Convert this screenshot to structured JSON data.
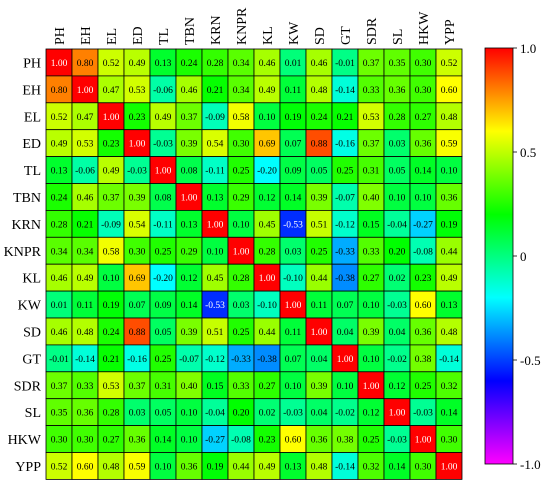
{
  "chart_data": {
    "type": "heatmap",
    "title": "",
    "variables": [
      "PH",
      "EH",
      "EL",
      "ED",
      "TL",
      "TBN",
      "KRN",
      "KNPR",
      "KL",
      "KW",
      "SD",
      "GT",
      "SDR",
      "SL",
      "HKW",
      "YPP"
    ],
    "matrix": [
      [
        1.0,
        0.8,
        0.52,
        0.49,
        0.13,
        0.24,
        0.28,
        0.34,
        0.46,
        0.01,
        0.46,
        -0.01,
        0.37,
        0.35,
        0.3,
        0.52
      ],
      [
        0.8,
        1.0,
        0.47,
        0.53,
        -0.06,
        0.46,
        0.21,
        0.34,
        0.49,
        0.11,
        0.48,
        -0.14,
        0.33,
        0.36,
        0.3,
        0.6
      ],
      [
        0.52,
        0.47,
        1.0,
        0.23,
        0.49,
        0.37,
        -0.09,
        0.58,
        0.1,
        0.19,
        0.24,
        0.21,
        0.53,
        0.28,
        0.27,
        0.48
      ],
      [
        0.49,
        0.53,
        0.23,
        1.0,
        -0.03,
        0.39,
        0.54,
        0.3,
        0.69,
        0.07,
        0.88,
        -0.16,
        0.37,
        0.03,
        0.36,
        0.59
      ],
      [
        0.13,
        -0.06,
        0.49,
        -0.03,
        1.0,
        0.08,
        -0.11,
        0.25,
        -0.2,
        0.09,
        0.05,
        0.25,
        0.31,
        0.05,
        0.14,
        0.1
      ],
      [
        0.24,
        0.46,
        0.37,
        0.39,
        0.08,
        1.0,
        0.13,
        0.29,
        0.12,
        0.14,
        0.39,
        -0.07,
        0.4,
        0.1,
        0.1,
        0.36
      ],
      [
        0.28,
        0.21,
        -0.09,
        0.54,
        -0.11,
        0.13,
        1.0,
        0.1,
        0.45,
        -0.53,
        0.51,
        -0.12,
        0.15,
        -0.04,
        -0.27,
        0.19
      ],
      [
        0.34,
        0.34,
        0.58,
        0.3,
        0.25,
        0.29,
        0.1,
        1.0,
        0.28,
        0.03,
        0.25,
        -0.33,
        0.33,
        0.2,
        -0.08,
        0.44
      ],
      [
        0.46,
        0.49,
        0.1,
        0.69,
        -0.2,
        0.12,
        0.45,
        0.28,
        1.0,
        -0.1,
        0.44,
        -0.38,
        0.27,
        0.02,
        0.23,
        0.49
      ],
      [
        0.01,
        0.11,
        0.19,
        0.07,
        0.09,
        0.14,
        -0.53,
        0.03,
        -0.1,
        1.0,
        0.11,
        0.07,
        0.1,
        -0.03,
        0.6,
        0.13
      ],
      [
        0.46,
        0.48,
        0.24,
        0.88,
        0.05,
        0.39,
        0.51,
        0.25,
        0.44,
        0.11,
        1.0,
        0.04,
        0.39,
        0.04,
        0.36,
        0.48
      ],
      [
        -0.01,
        -0.14,
        0.21,
        -0.16,
        0.25,
        -0.07,
        -0.12,
        -0.33,
        -0.38,
        0.07,
        0.04,
        1.0,
        0.1,
        -0.02,
        0.38,
        -0.14
      ],
      [
        0.37,
        0.33,
        0.53,
        0.37,
        0.31,
        0.4,
        0.15,
        0.33,
        0.27,
        0.1,
        0.39,
        0.1,
        1.0,
        0.12,
        0.25,
        0.32
      ],
      [
        0.35,
        0.36,
        0.28,
        0.03,
        0.05,
        0.1,
        -0.04,
        0.2,
        0.02,
        -0.03,
        0.04,
        -0.02,
        0.12,
        1.0,
        -0.03,
        0.14
      ],
      [
        0.3,
        0.3,
        0.27,
        0.36,
        0.14,
        0.1,
        -0.27,
        -0.08,
        0.23,
        0.6,
        0.36,
        0.38,
        0.25,
        -0.03,
        1.0,
        0.3
      ],
      [
        0.52,
        0.6,
        0.48,
        0.59,
        0.1,
        0.36,
        0.19,
        0.44,
        0.49,
        0.13,
        0.48,
        -0.14,
        0.32,
        0.14,
        0.3,
        1.0
      ]
    ],
    "colorbar": {
      "min": -1.0,
      "max": 1.0,
      "ticks": [
        1.0,
        0.5,
        0,
        -0.5,
        -1.0
      ],
      "tick_labels": [
        "1.0",
        "0.5",
        "0",
        "-0.5",
        "-1.0"
      ],
      "colors": [
        "#ff00ff",
        "#0000ff",
        "#00ffff",
        "#00ff00",
        "#ffff00",
        "#ff0000"
      ]
    }
  }
}
